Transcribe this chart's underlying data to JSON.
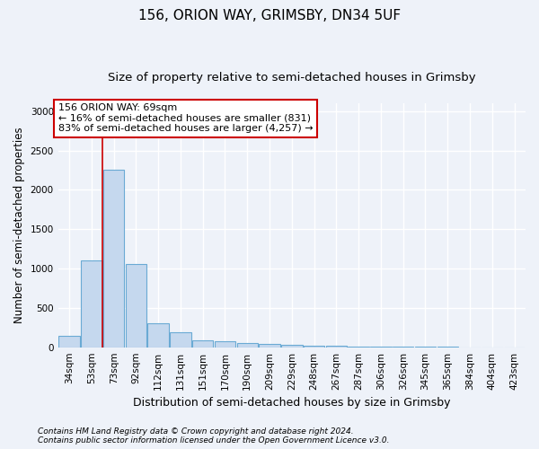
{
  "title": "156, ORION WAY, GRIMSBY, DN34 5UF",
  "subtitle": "Size of property relative to semi-detached houses in Grimsby",
  "xlabel": "Distribution of semi-detached houses by size in Grimsby",
  "ylabel": "Number of semi-detached properties",
  "footnote1": "Contains HM Land Registry data © Crown copyright and database right 2024.",
  "footnote2": "Contains public sector information licensed under the Open Government Licence v3.0.",
  "annotation_title": "156 ORION WAY: 69sqm",
  "annotation_line1": "← 16% of semi-detached houses are smaller (831)",
  "annotation_line2": "83% of semi-detached houses are larger (4,257) →",
  "bar_categories": [
    "34sqm",
    "53sqm",
    "73sqm",
    "92sqm",
    "112sqm",
    "131sqm",
    "151sqm",
    "170sqm",
    "190sqm",
    "209sqm",
    "229sqm",
    "248sqm",
    "267sqm",
    "287sqm",
    "306sqm",
    "326sqm",
    "345sqm",
    "365sqm",
    "384sqm",
    "404sqm",
    "423sqm"
  ],
  "bar_values": [
    140,
    1100,
    2250,
    1060,
    300,
    185,
    90,
    75,
    55,
    40,
    30,
    20,
    15,
    10,
    8,
    5,
    4,
    3,
    2,
    2,
    1
  ],
  "bar_color": "#c5d8ee",
  "bar_edge_color": "#6aaad4",
  "vline_color": "#cc0000",
  "vline_x_index": 1.5,
  "ylim": [
    0,
    3100
  ],
  "yticks": [
    0,
    500,
    1000,
    1500,
    2000,
    2500,
    3000
  ],
  "background_color": "#eef2f9",
  "axes_background": "#eef2f9",
  "grid_color": "#ffffff",
  "annotation_box_facecolor": "#ffffff",
  "annotation_box_edgecolor": "#cc0000",
  "title_fontsize": 11,
  "subtitle_fontsize": 9.5,
  "xlabel_fontsize": 9,
  "ylabel_fontsize": 8.5,
  "tick_fontsize": 7.5,
  "annotation_fontsize": 8,
  "footnote_fontsize": 6.5
}
